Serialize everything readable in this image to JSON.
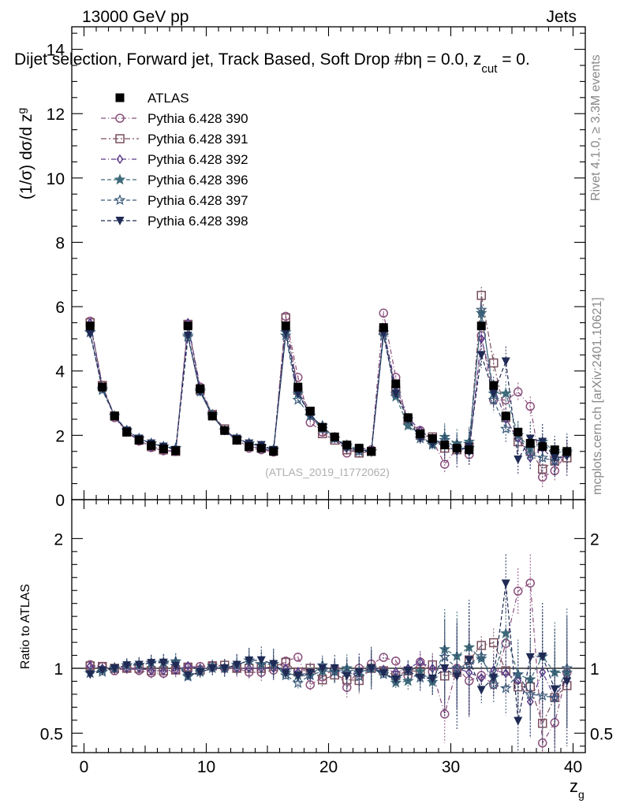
{
  "header": {
    "left": "13000 GeV pp",
    "right": "Jets"
  },
  "side_labels": {
    "right_top": "Rivet 4.1.0, ≥ 3.3M events",
    "right_bottom": "mcplots.cern.ch [arXiv:2401.10621]"
  },
  "colors": {
    "ATLAS": "#000000",
    "390": "#8a4f7d",
    "391": "#7a4f5f",
    "392": "#5a3a8a",
    "396": "#3e6a7a",
    "397": "#3a5a7a",
    "398": "#1f2a55"
  },
  "chart_data": {
    "type": "scatter",
    "title": "Dijet selection, Forward jet, Track Based, Soft Drop #bη = 0.0, z",
    "title_sub": "cut",
    "title_tail": " = 0.",
    "watermark": "(ATLAS_2019_I1772062)",
    "xlabel": "z",
    "xlabel_sub": "g",
    "ylabel_main": "(1/σ) dσ/d z",
    "ylabel_main_sub": "g",
    "ylabel_ratio": "Ratio to ATLAS",
    "xlim": [
      -1,
      41
    ],
    "ylim_main": [
      0,
      14.7
    ],
    "ylim_ratio": [
      0.35,
      2.3
    ],
    "x_ticks": [
      "0",
      "10",
      "20",
      "30",
      "40"
    ],
    "y_ticks_main": [
      "0",
      "2",
      "4",
      "6",
      "8",
      "10",
      "12",
      "14"
    ],
    "y_ticks_ratio": [
      "0.5",
      "1",
      "2"
    ],
    "x": [
      0.5,
      1.5,
      2.5,
      3.5,
      4.5,
      5.5,
      6.5,
      7.5,
      8.5,
      9.5,
      10.5,
      11.5,
      12.5,
      13.5,
      14.5,
      15.5,
      16.5,
      17.5,
      18.5,
      19.5,
      20.5,
      21.5,
      22.5,
      23.5,
      24.5,
      25.5,
      26.5,
      27.5,
      28.5,
      29.5,
      30.5,
      31.5,
      32.5,
      33.5,
      34.5,
      35.5,
      36.5,
      37.5,
      38.5,
      39.5
    ],
    "data": {
      "name": "ATLAS",
      "values": [
        5.4,
        3.5,
        2.6,
        2.1,
        1.85,
        1.68,
        1.58,
        1.52,
        5.4,
        3.45,
        2.6,
        2.15,
        1.85,
        1.65,
        1.6,
        1.5,
        5.4,
        3.5,
        2.75,
        2.25,
        1.95,
        1.7,
        1.6,
        1.5,
        5.35,
        3.6,
        2.55,
        2.05,
        1.9,
        1.7,
        1.6,
        1.55,
        5.4,
        3.55,
        2.6,
        2.1,
        1.75,
        1.65,
        1.55,
        1.5
      ]
    },
    "series": [
      {
        "name": "Pythia 6.428 390",
        "key": "390",
        "marker": "circle",
        "values": [
          5.55,
          3.55,
          2.55,
          2.1,
          1.82,
          1.62,
          1.52,
          1.5,
          5.45,
          3.5,
          2.65,
          2.15,
          1.85,
          1.6,
          1.55,
          1.48,
          5.7,
          3.8,
          2.4,
          2.1,
          1.95,
          1.45,
          1.6,
          1.55,
          5.8,
          3.8,
          2.4,
          2.15,
          1.85,
          1.1,
          1.6,
          1.4,
          5.1,
          3.1,
          3.1,
          3.35,
          2.9,
          0.7,
          0.9,
          1.45
        ]
      },
      {
        "name": "Pythia 6.428 391",
        "key": "391",
        "marker": "square",
        "values": [
          5.5,
          3.55,
          2.6,
          2.1,
          1.85,
          1.65,
          1.55,
          1.5,
          5.45,
          3.4,
          2.65,
          2.2,
          1.85,
          1.65,
          1.6,
          1.52,
          5.65,
          3.4,
          2.75,
          2.05,
          1.85,
          1.55,
          1.45,
          1.5,
          5.25,
          3.4,
          2.5,
          2.0,
          1.95,
          1.6,
          1.55,
          1.65,
          6.35,
          4.25,
          2.55,
          1.8,
          1.5,
          0.95,
          1.2,
          1.3
        ]
      },
      {
        "name": "Pythia 6.428 392",
        "key": "392",
        "marker": "diamond",
        "values": [
          5.5,
          3.5,
          2.6,
          2.1,
          1.85,
          1.65,
          1.55,
          1.5,
          5.5,
          3.45,
          2.6,
          2.15,
          1.85,
          1.65,
          1.6,
          1.5,
          5.4,
          3.4,
          2.6,
          2.2,
          1.9,
          1.65,
          1.55,
          1.5,
          5.3,
          3.5,
          2.55,
          2.15,
          1.9,
          1.7,
          1.6,
          1.5,
          5.0,
          3.5,
          2.5,
          1.9,
          1.3,
          1.6,
          1.2,
          1.4
        ]
      },
      {
        "name": "Pythia 6.428 396",
        "key": "396",
        "marker": "star",
        "values": [
          5.2,
          3.45,
          2.6,
          2.15,
          1.9,
          1.75,
          1.65,
          1.6,
          5.1,
          3.4,
          2.65,
          2.15,
          1.9,
          1.75,
          1.65,
          1.55,
          5.2,
          3.3,
          2.6,
          2.2,
          1.9,
          1.7,
          1.55,
          1.5,
          5.2,
          3.2,
          2.3,
          2.0,
          1.7,
          1.95,
          1.75,
          1.8,
          5.8,
          3.3,
          3.3,
          2.0,
          1.6,
          1.8,
          1.5,
          1.45
        ]
      },
      {
        "name": "Pythia 6.428 397",
        "key": "397",
        "marker": "star-open",
        "values": [
          5.2,
          3.4,
          2.6,
          2.15,
          1.9,
          1.75,
          1.65,
          1.6,
          5.05,
          3.35,
          2.6,
          2.15,
          1.9,
          1.75,
          1.65,
          1.55,
          5.1,
          3.1,
          2.6,
          2.3,
          1.9,
          1.65,
          1.5,
          1.5,
          5.1,
          3.3,
          2.5,
          1.9,
          1.75,
          1.85,
          1.6,
          1.6,
          5.9,
          3.1,
          2.2,
          2.0,
          1.4,
          1.3,
          1.2,
          1.5
        ]
      },
      {
        "name": "Pythia 6.428 398",
        "key": "398",
        "marker": "triangle-down",
        "values": [
          5.15,
          3.45,
          2.6,
          2.15,
          1.9,
          1.75,
          1.65,
          1.55,
          5.1,
          3.35,
          2.6,
          2.15,
          1.9,
          1.75,
          1.7,
          1.55,
          5.2,
          3.3,
          2.65,
          2.25,
          1.95,
          1.6,
          1.55,
          1.5,
          5.15,
          3.3,
          2.5,
          1.9,
          1.75,
          1.7,
          1.5,
          1.65,
          4.5,
          3.3,
          4.3,
          1.25,
          1.9,
          1.8,
          1.3,
          1.35
        ]
      }
    ]
  }
}
